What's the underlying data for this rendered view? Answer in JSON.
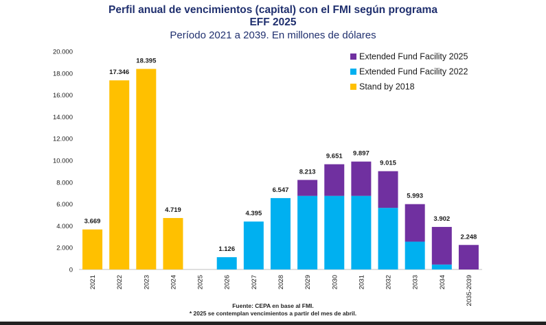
{
  "header": {
    "title_line1": "Perfil anual de vencimientos (capital) con el FMI según programa",
    "title_line2": "EFF 2025",
    "subtitle": "Período 2021 a 2039. En millones de dólares"
  },
  "footer": {
    "source": "Fuente: CEPA en base al FMI.",
    "note": "* 2025 se contemplan vencimientos a partir del mes de abril."
  },
  "colors": {
    "eff2025": "#7030a0",
    "eff2022": "#00b0f0",
    "sba2018": "#ffc000",
    "axis": "#bfbfbf",
    "text": "#1a1a1a"
  },
  "chart_data": {
    "type": "bar",
    "stacked": true,
    "categories": [
      "2021",
      "2022",
      "2023",
      "2024",
      "2025",
      "2026",
      "2027",
      "2028",
      "2029",
      "2030",
      "2031",
      "2032",
      "2033",
      "2034",
      "2035-2039"
    ],
    "series": [
      {
        "name": "Stand by 2018",
        "color": "#ffc000",
        "values": [
          3669,
          17346,
          18395,
          4719,
          0,
          0,
          0,
          0,
          0,
          0,
          0,
          0,
          0,
          0,
          0
        ]
      },
      {
        "name": "Extended Fund Facility 2022",
        "color": "#00b0f0",
        "values": [
          0,
          0,
          0,
          0,
          0,
          1126,
          4395,
          6547,
          6750,
          6750,
          6750,
          5650,
          2550,
          450,
          0
        ]
      },
      {
        "name": "Extended Fund Facility 2025",
        "color": "#7030a0",
        "values": [
          0,
          0,
          0,
          0,
          0,
          0,
          0,
          0,
          1463,
          2901,
          3147,
          3365,
          3443,
          3452,
          2248
        ]
      }
    ],
    "data_labels": [
      "3.669",
      "17.346",
      "18.395",
      "4.719",
      "",
      "1.126",
      "4.395",
      "6.547",
      "8.213",
      "9.651",
      "9.897",
      "9.015",
      "5.993",
      "3.902",
      "2.248"
    ],
    "ylim": [
      0,
      20000
    ],
    "yticks": [
      0,
      2000,
      4000,
      6000,
      8000,
      10000,
      12000,
      14000,
      16000,
      18000,
      20000
    ],
    "ytick_labels": [
      "0",
      "2.000",
      "4.000",
      "6.000",
      "8.000",
      "10.000",
      "12.000",
      "14.000",
      "16.000",
      "18.000",
      "20.000"
    ],
    "legend_position": "top-right",
    "legend_order": [
      "Extended Fund Facility 2025",
      "Extended Fund Facility 2022",
      "Stand by 2018"
    ],
    "grid": false
  }
}
